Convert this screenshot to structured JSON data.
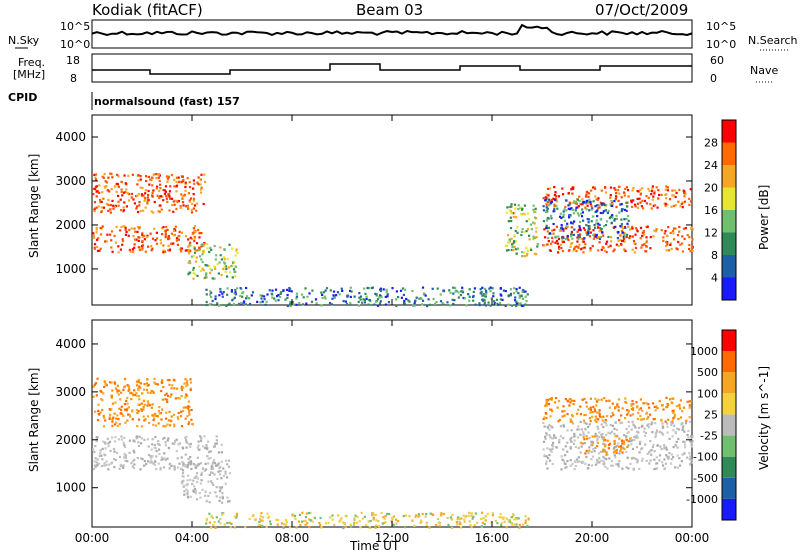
{
  "header": {
    "station": "Kodiak (fitACF)",
    "beam": "Beam 03",
    "date": "07/Oct/2009"
  },
  "params": {
    "nsky_label": "N.Sky",
    "nsearch_label": "N.Search",
    "freq_label_1": "Freq.",
    "freq_label_2": "[MHz]",
    "nave_label": "Nave",
    "cpid_label": "CPID",
    "cpid_value": "normalsound (fast) 157",
    "noise_ticks_left": [
      "10^5",
      "10^0"
    ],
    "noise_ticks_right": [
      "10^5",
      "10^0"
    ],
    "freq_ticks": [
      "18",
      "8"
    ],
    "nave_ticks": [
      "60",
      "0"
    ]
  },
  "chart_data": [
    {
      "type": "heatmap",
      "name": "power",
      "ylabel": "Slant Range [km]",
      "yticks": [
        "4000",
        "3000",
        "2000",
        "1000"
      ],
      "ylim": [
        180,
        4500
      ],
      "x_ticks": [
        "00:00",
        "04:00",
        "08:00",
        "12:00",
        "16:00",
        "20:00",
        "00:00"
      ],
      "colorbar": {
        "label": "Power [dB]",
        "ticks": [
          "28",
          "24",
          "20",
          "16",
          "12",
          "8",
          "4"
        ],
        "colors": [
          "#1a1aff",
          "#1f5fa8",
          "#2e8b57",
          "#6fbf6f",
          "#e6e632",
          "#f5a623",
          "#ff6a00",
          "#ff0000"
        ]
      },
      "bands": [
        {
          "t0": 0.0,
          "t1": 4.5,
          "r0": 2300,
          "r1": 3200,
          "level": "high"
        },
        {
          "t0": 0.0,
          "t1": 4.5,
          "r0": 1400,
          "r1": 2000,
          "level": "high"
        },
        {
          "t0": 3.8,
          "t1": 5.8,
          "r0": 800,
          "r1": 1600,
          "level": "mid"
        },
        {
          "t0": 4.5,
          "t1": 17.5,
          "r0": 180,
          "r1": 600,
          "level": "low"
        },
        {
          "t0": 16.5,
          "t1": 17.8,
          "r0": 1300,
          "r1": 2500,
          "level": "mid"
        },
        {
          "t0": 18.0,
          "t1": 24.0,
          "r0": 1400,
          "r1": 2000,
          "level": "high"
        },
        {
          "t0": 18.0,
          "t1": 24.0,
          "r0": 2400,
          "r1": 2900,
          "level": "high"
        },
        {
          "t0": 18.0,
          "t1": 21.5,
          "r0": 1700,
          "r1": 2600,
          "level": "low"
        }
      ]
    },
    {
      "type": "heatmap",
      "name": "velocity",
      "ylabel": "Slant Range [km]",
      "yticks": [
        "4000",
        "3000",
        "2000",
        "1000"
      ],
      "ylim": [
        180,
        4500
      ],
      "xlabel": "Time UT",
      "x_ticks": [
        "00:00",
        "04:00",
        "08:00",
        "12:00",
        "16:00",
        "20:00",
        "00:00"
      ],
      "colorbar": {
        "label": "Velocity [m s^-1]",
        "ticks": [
          "1000",
          "500",
          "100",
          "25",
          "-25",
          "-100",
          "-500",
          "-1000"
        ],
        "colors": [
          "#1a1aff",
          "#1f5fa8",
          "#2e8b57",
          "#6fbf6f",
          "#bbbbbb",
          "#f5d23c",
          "#f5a623",
          "#ff6a00",
          "#ff0000"
        ]
      },
      "bands": [
        {
          "t0": 0.0,
          "t1": 4.0,
          "r0": 2300,
          "r1": 3300,
          "level": "orange"
        },
        {
          "t0": 0.0,
          "t1": 5.2,
          "r0": 1400,
          "r1": 2100,
          "level": "gray"
        },
        {
          "t0": 3.5,
          "t1": 5.5,
          "r0": 700,
          "r1": 1600,
          "level": "gray"
        },
        {
          "t0": 4.5,
          "t1": 17.5,
          "r0": 180,
          "r1": 500,
          "level": "yellow"
        },
        {
          "t0": 18.0,
          "t1": 24.0,
          "r0": 1400,
          "r1": 2400,
          "level": "gray"
        },
        {
          "t0": 18.0,
          "t1": 24.0,
          "r0": 2400,
          "r1": 2900,
          "level": "orange"
        },
        {
          "t0": 19.5,
          "t1": 21.5,
          "r0": 1700,
          "r1": 2100,
          "level": "orange"
        }
      ]
    }
  ]
}
